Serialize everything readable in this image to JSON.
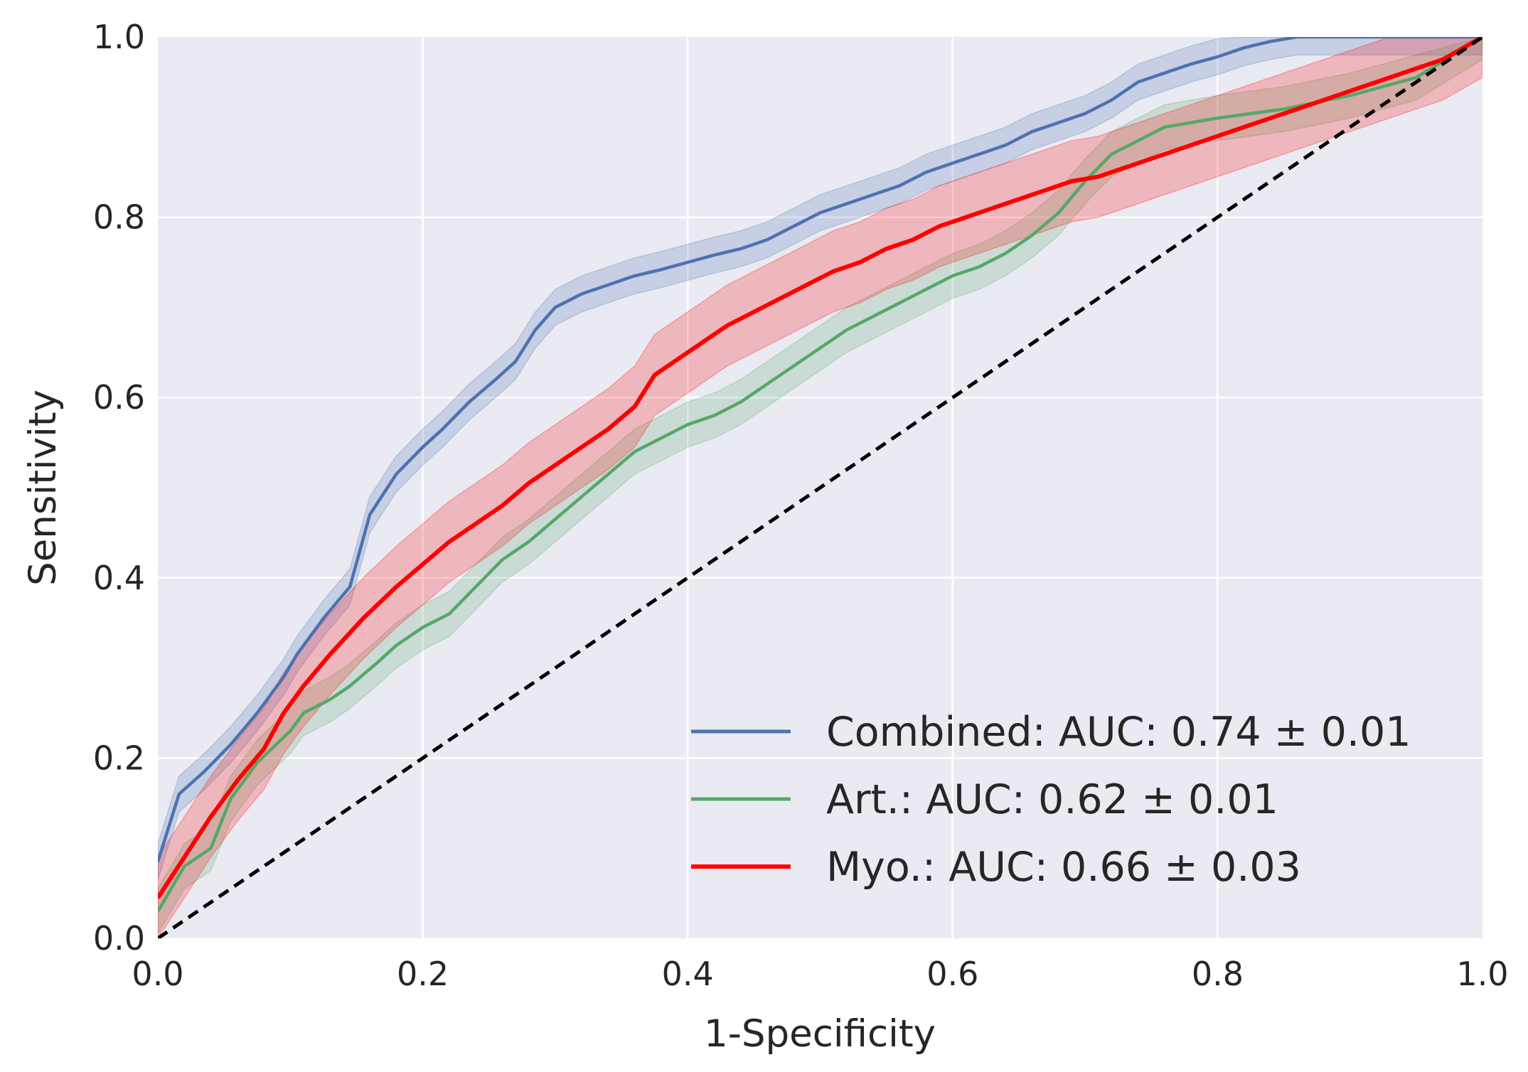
{
  "chart_data": {
    "type": "line",
    "title": "",
    "xlabel": "1-Specificity",
    "ylabel": "Sensitivity",
    "xlim": [
      0,
      1
    ],
    "ylim": [
      0,
      1
    ],
    "grid": true,
    "legend_position": "bottom-right",
    "x_ticks": [
      "0.0",
      "0.2",
      "0.4",
      "0.6",
      "0.8",
      "1.0"
    ],
    "y_ticks": [
      "0.0",
      "0.2",
      "0.4",
      "0.6",
      "0.8",
      "1.0"
    ],
    "colors": {
      "background": "#eaeaf2",
      "grid": "#ffffff",
      "text": "#262626",
      "combined": "#4c72b0",
      "art": "#55a868",
      "myo": "#ff0000",
      "chance": "#000000"
    },
    "series": [
      {
        "name": "Combined",
        "label": "Combined: AUC: 0.74 ± 0.01",
        "color": "#4c72b0",
        "x": [
          0,
          0.016,
          0.035,
          0.055,
          0.075,
          0.095,
          0.105,
          0.125,
          0.145,
          0.16,
          0.18,
          0.2,
          0.215,
          0.235,
          0.255,
          0.27,
          0.285,
          0.3,
          0.32,
          0.34,
          0.36,
          0.38,
          0.4,
          0.42,
          0.44,
          0.46,
          0.48,
          0.5,
          0.52,
          0.54,
          0.56,
          0.58,
          0.6,
          0.62,
          0.64,
          0.66,
          0.68,
          0.7,
          0.72,
          0.74,
          0.76,
          0.78,
          0.8,
          0.82,
          0.84,
          0.86,
          0.9,
          0.95,
          1.0
        ],
        "values": [
          0.085,
          0.16,
          0.185,
          0.215,
          0.25,
          0.29,
          0.315,
          0.355,
          0.39,
          0.47,
          0.515,
          0.545,
          0.565,
          0.595,
          0.62,
          0.64,
          0.675,
          0.7,
          0.715,
          0.725,
          0.735,
          0.742,
          0.75,
          0.758,
          0.765,
          0.775,
          0.79,
          0.805,
          0.815,
          0.825,
          0.835,
          0.85,
          0.86,
          0.87,
          0.88,
          0.895,
          0.905,
          0.915,
          0.93,
          0.95,
          0.96,
          0.97,
          0.978,
          0.988,
          0.995,
          1.0,
          1.0,
          1.0,
          1.0
        ],
        "band": 0.02
      },
      {
        "name": "Art.",
        "label": "Art.: AUC: 0.62 ± 0.01",
        "color": "#55a868",
        "x": [
          0,
          0.02,
          0.04,
          0.055,
          0.075,
          0.1,
          0.11,
          0.13,
          0.145,
          0.165,
          0.18,
          0.2,
          0.22,
          0.24,
          0.26,
          0.28,
          0.3,
          0.32,
          0.34,
          0.36,
          0.38,
          0.4,
          0.42,
          0.44,
          0.46,
          0.48,
          0.5,
          0.52,
          0.54,
          0.56,
          0.58,
          0.6,
          0.62,
          0.64,
          0.66,
          0.68,
          0.7,
          0.72,
          0.74,
          0.76,
          0.78,
          0.8,
          0.85,
          0.9,
          0.95,
          1.0
        ],
        "values": [
          0.03,
          0.08,
          0.1,
          0.155,
          0.195,
          0.23,
          0.25,
          0.265,
          0.28,
          0.305,
          0.325,
          0.345,
          0.36,
          0.39,
          0.42,
          0.44,
          0.465,
          0.49,
          0.515,
          0.54,
          0.555,
          0.57,
          0.58,
          0.595,
          0.615,
          0.635,
          0.655,
          0.675,
          0.69,
          0.705,
          0.72,
          0.735,
          0.745,
          0.76,
          0.78,
          0.805,
          0.84,
          0.87,
          0.885,
          0.9,
          0.905,
          0.91,
          0.92,
          0.935,
          0.955,
          1.0
        ],
        "band": 0.025
      },
      {
        "name": "Myo.",
        "label": "Myo.: AUC: 0.66 ± 0.03",
        "color": "#ff0000",
        "x": [
          0,
          0.02,
          0.04,
          0.06,
          0.08,
          0.095,
          0.11,
          0.13,
          0.155,
          0.18,
          0.2,
          0.22,
          0.24,
          0.26,
          0.28,
          0.3,
          0.32,
          0.34,
          0.36,
          0.375,
          0.39,
          0.41,
          0.43,
          0.45,
          0.47,
          0.49,
          0.51,
          0.53,
          0.55,
          0.57,
          0.59,
          0.61,
          0.63,
          0.65,
          0.67,
          0.69,
          0.71,
          0.73,
          0.75,
          0.77,
          0.79,
          0.81,
          0.83,
          0.85,
          0.87,
          0.89,
          0.91,
          0.93,
          0.95,
          0.97,
          1.0
        ],
        "values": [
          0.045,
          0.09,
          0.135,
          0.175,
          0.21,
          0.25,
          0.28,
          0.315,
          0.355,
          0.39,
          0.415,
          0.44,
          0.46,
          0.48,
          0.505,
          0.525,
          0.545,
          0.565,
          0.59,
          0.625,
          0.64,
          0.66,
          0.68,
          0.695,
          0.71,
          0.725,
          0.74,
          0.75,
          0.765,
          0.775,
          0.79,
          0.8,
          0.81,
          0.82,
          0.83,
          0.84,
          0.845,
          0.855,
          0.865,
          0.875,
          0.885,
          0.895,
          0.905,
          0.915,
          0.925,
          0.935,
          0.945,
          0.955,
          0.965,
          0.975,
          1.0
        ],
        "band": 0.045
      },
      {
        "name": "Chance",
        "label": "",
        "color": "#000000",
        "style": "dashed",
        "x": [
          0,
          1
        ],
        "values": [
          0,
          1
        ]
      }
    ]
  }
}
